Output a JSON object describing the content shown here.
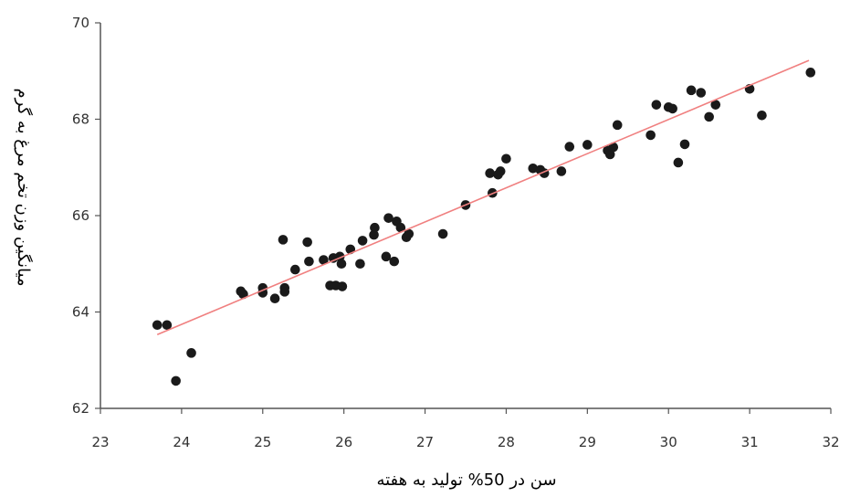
{
  "chart_data": {
    "type": "scatter",
    "xlabel": "سن در 50% تولید به هفته",
    "ylabel": "میانگین وزن تخم مرغ به گرم",
    "xlim": [
      23,
      32
    ],
    "ylim": [
      62,
      70
    ],
    "x_ticks": [
      "23",
      "24",
      "25",
      "26",
      "27",
      "28",
      "29",
      "30",
      "31",
      "32"
    ],
    "y_ticks": [
      "62",
      "64",
      "66",
      "68",
      "70"
    ],
    "grid": false,
    "colors": {
      "points": "#1a1a1a",
      "trendline": "#f08080",
      "axis": "#555555"
    },
    "series": [
      {
        "points": [
          [
            23.7,
            63.73
          ],
          [
            23.82,
            63.73
          ],
          [
            23.93,
            62.57
          ],
          [
            24.12,
            63.15
          ],
          [
            24.73,
            64.43
          ],
          [
            24.76,
            64.37
          ],
          [
            25.0,
            64.5
          ],
          [
            25.0,
            64.4
          ],
          [
            25.15,
            64.28
          ],
          [
            25.25,
            65.5
          ],
          [
            25.27,
            64.5
          ],
          [
            25.27,
            64.42
          ],
          [
            25.4,
            64.88
          ],
          [
            25.55,
            65.45
          ],
          [
            25.57,
            65.05
          ],
          [
            25.75,
            65.08
          ],
          [
            25.83,
            64.55
          ],
          [
            25.87,
            65.12
          ],
          [
            25.9,
            64.55
          ],
          [
            25.95,
            65.15
          ],
          [
            25.97,
            65.0
          ],
          [
            25.98,
            64.53
          ],
          [
            26.08,
            65.3
          ],
          [
            26.2,
            65.0
          ],
          [
            26.23,
            65.48
          ],
          [
            26.37,
            65.6
          ],
          [
            26.38,
            65.75
          ],
          [
            26.52,
            65.15
          ],
          [
            26.55,
            65.95
          ],
          [
            26.62,
            65.05
          ],
          [
            26.65,
            65.88
          ],
          [
            26.7,
            65.75
          ],
          [
            26.77,
            65.55
          ],
          [
            26.8,
            65.62
          ],
          [
            27.22,
            65.62
          ],
          [
            27.5,
            66.22
          ],
          [
            27.8,
            66.88
          ],
          [
            27.83,
            66.47
          ],
          [
            27.9,
            66.85
          ],
          [
            27.93,
            66.92
          ],
          [
            28.0,
            67.18
          ],
          [
            28.33,
            66.98
          ],
          [
            28.42,
            66.95
          ],
          [
            28.47,
            66.88
          ],
          [
            28.68,
            66.92
          ],
          [
            28.78,
            67.43
          ],
          [
            29.0,
            67.47
          ],
          [
            29.25,
            67.35
          ],
          [
            29.28,
            67.27
          ],
          [
            29.32,
            67.42
          ],
          [
            29.37,
            67.88
          ],
          [
            29.78,
            67.67
          ],
          [
            29.85,
            68.3
          ],
          [
            30.0,
            68.25
          ],
          [
            30.05,
            68.22
          ],
          [
            30.12,
            67.1
          ],
          [
            30.2,
            67.48
          ],
          [
            30.28,
            68.6
          ],
          [
            30.4,
            68.55
          ],
          [
            30.5,
            68.05
          ],
          [
            30.58,
            68.3
          ],
          [
            31.0,
            68.63
          ],
          [
            31.15,
            68.08
          ],
          [
            31.75,
            68.97
          ]
        ]
      }
    ],
    "trendline": {
      "x": [
        23.7,
        31.73
      ],
      "y": [
        63.53,
        69.22
      ]
    }
  }
}
